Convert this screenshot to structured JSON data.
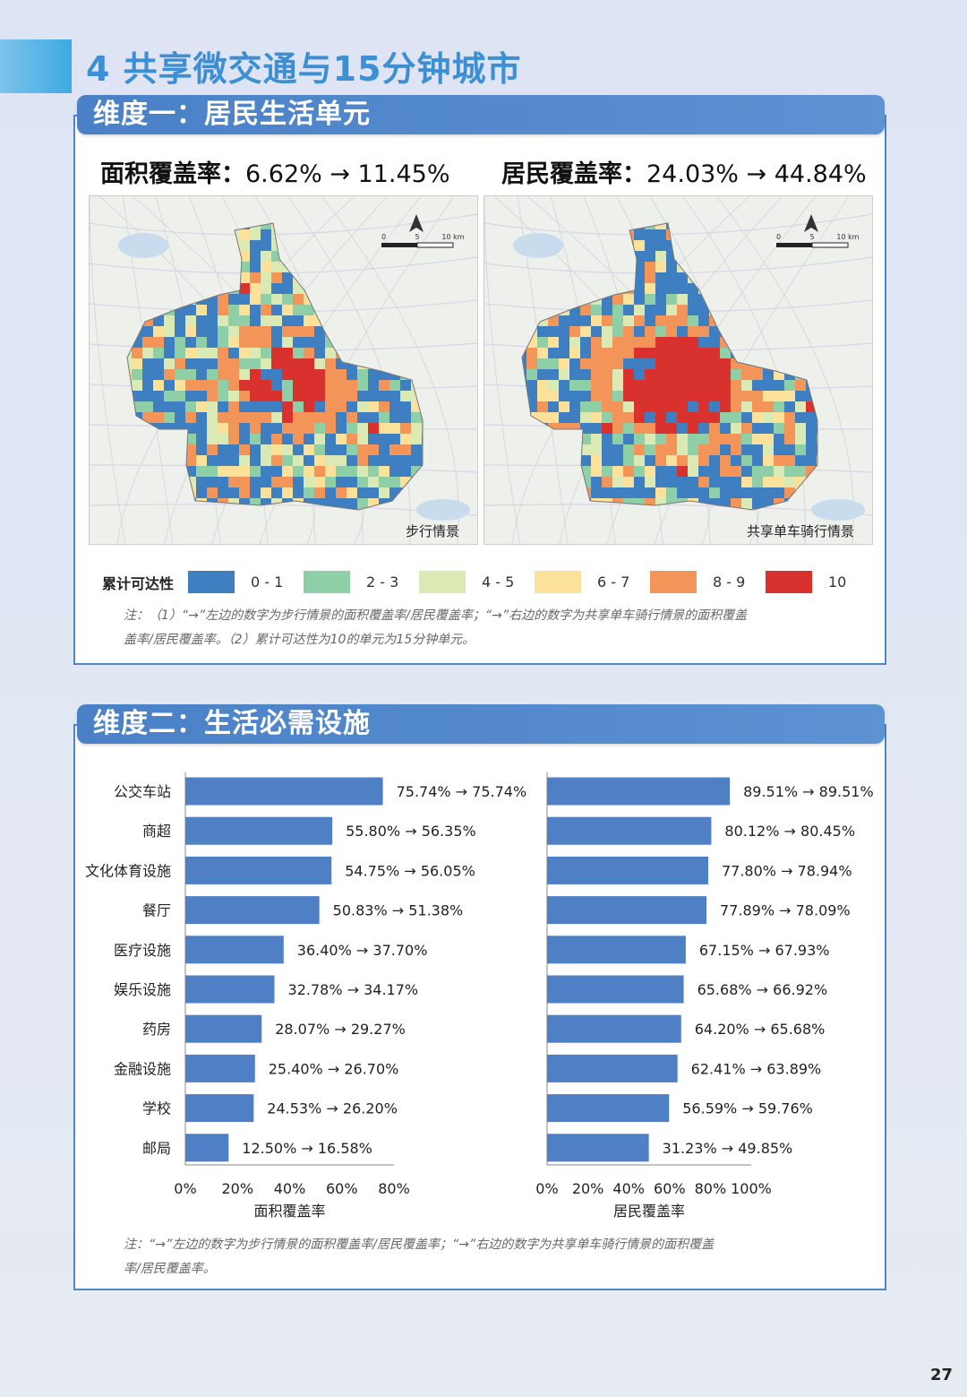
{
  "page_title": "4 共享微交通与15分钟城市",
  "page_number": "27",
  "dimension1": {
    "header": "维度一：居民生活单元",
    "area_stat": {
      "label": "面积覆盖率：",
      "value": "6.62% → 11.45%"
    },
    "resident_stat": {
      "label": "居民覆盖率：",
      "value": "24.03% → 44.84%"
    },
    "map_left_caption": "步行情景",
    "map_right_caption": "共享单车骑行情景",
    "scale_labels": [
      "0",
      "5",
      "10 km"
    ],
    "legend_title": "累计可达性",
    "legend": [
      {
        "label": "0 - 1",
        "color": "#3d7fc1"
      },
      {
        "label": "2 - 3",
        "color": "#8fcfa7"
      },
      {
        "label": "4 - 5",
        "color": "#dbeab5"
      },
      {
        "label": "6 - 7",
        "color": "#fbe19a"
      },
      {
        "label": "8 - 9",
        "color": "#f39458"
      },
      {
        "label": "10",
        "color": "#d9312e"
      }
    ],
    "note_line1": "注：（1）“→”左边的数字为步行情景的面积覆盖率/居民覆盖率；“→”右边的数字为共享单车骑行情景的面积覆盖",
    "note_line2": "盖率/居民覆盖率。（2）累计可达性为10的单元为15分钟单元。"
  },
  "dimension2": {
    "header": "维度二：生活必需设施",
    "note_line1": "注：“→”左边的数字为步行情景的面积覆盖率/居民覆盖率；“→”右边的数字为共享单车骑行情景的面积覆盖",
    "note_line2": "率/居民覆盖率。"
  },
  "chart_data": [
    {
      "type": "bar",
      "orientation": "horizontal",
      "xlabel": "面积覆盖率",
      "xlim": [
        0,
        80
      ],
      "ticks": [
        "0%",
        "20%",
        "40%",
        "60%",
        "80%"
      ],
      "categories": [
        "公交车站",
        "商超",
        "文化体育设施",
        "餐厅",
        "医疗设施",
        "娱乐设施",
        "药房",
        "金融设施",
        "学校",
        "邮局"
      ],
      "values": [
        75.74,
        56.35,
        56.05,
        51.38,
        37.7,
        34.17,
        29.27,
        26.7,
        26.2,
        16.58
      ],
      "data_labels": [
        "75.74% → 75.74%",
        "55.80% → 56.35%",
        "54.75% → 56.05%",
        "50.83% → 51.38%",
        "36.40% → 37.70%",
        "32.78% → 34.17%",
        "28.07% → 29.27%",
        "25.40% → 26.70%",
        "24.53% → 26.20%",
        "12.50% → 16.58%"
      ],
      "color": "#4f7fc4"
    },
    {
      "type": "bar",
      "orientation": "horizontal",
      "xlabel": "居民覆盖率",
      "xlim": [
        0,
        100
      ],
      "ticks": [
        "0%",
        "20%",
        "40%",
        "60%",
        "80%",
        "100%"
      ],
      "values": [
        89.51,
        80.45,
        78.94,
        78.09,
        67.93,
        66.92,
        65.68,
        63.89,
        59.76,
        49.85
      ],
      "data_labels": [
        "89.51% → 89.51%",
        "80.12% → 80.45%",
        "77.80% → 78.94%",
        "77.89% → 78.09%",
        "67.15% → 67.93%",
        "65.68% → 66.92%",
        "64.20% → 65.68%",
        "62.41% → 63.89%",
        "56.59% → 59.76%",
        "31.23% → 49.85%"
      ],
      "color": "#4f7fc4"
    }
  ]
}
